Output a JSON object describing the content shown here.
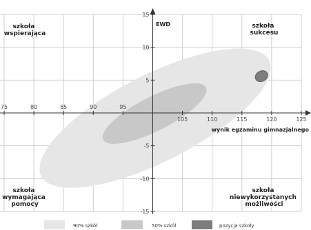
{
  "chart_data": {
    "type": "scatter",
    "xlabel": "wynik egzaminu gimnazjalnego",
    "ylabel": "EWD",
    "xlim": [
      75,
      125
    ],
    "ylim": [
      -15,
      15
    ],
    "x_ticks": [
      75,
      80,
      85,
      90,
      95,
      105,
      110,
      115,
      120,
      125
    ],
    "y_ticks": [
      15,
      10,
      5,
      -5,
      -10,
      -15
    ],
    "grid": true,
    "center": [
      100,
      0
    ],
    "quadrants": {
      "top_left": [
        "szkoła",
        "wspierająca"
      ],
      "top_right": [
        "szkoła",
        "sukcesu"
      ],
      "bottom_left": [
        "szkoła",
        "wymagająca",
        "pomocy"
      ],
      "bottom_right": [
        "szkoła",
        "niewykorzystanych",
        "możliwości"
      ]
    },
    "ellipses": [
      {
        "name": "90% szkół",
        "cx": 100.4,
        "cy": -0.8,
        "rx": 21.5,
        "ry": 6.6,
        "color": "#e6e6e6"
      },
      {
        "name": "50% szkół",
        "cx": 100.3,
        "cy": -0.1,
        "rx": 9.7,
        "ry": 2.6,
        "color": "#c8c8c8"
      },
      {
        "name": "pozycja szkoły",
        "cx": 118.3,
        "cy": 5.6,
        "rx": 1.1,
        "ry": 0.8,
        "color": "#7d7d7d"
      }
    ],
    "legend": [
      {
        "label": "90% szkół",
        "color": "#e6e6e6"
      },
      {
        "label": "50% szkół",
        "color": "#c8c8c8"
      },
      {
        "label": "pozycja szkoły",
        "color": "#7d7d7d"
      }
    ],
    "legend_position": "bottom"
  }
}
